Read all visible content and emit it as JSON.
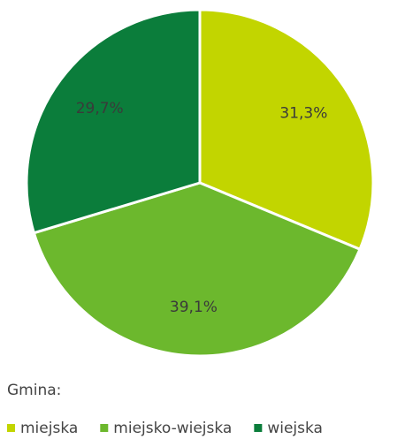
{
  "chart_data": {
    "type": "pie",
    "categories": [
      "miejska",
      "miejsko-wiejska",
      "wiejska"
    ],
    "values": [
      31.3,
      39.1,
      29.7
    ],
    "value_labels": [
      "31,3%",
      "39,1%",
      "29,7%"
    ],
    "colors": [
      "#c2d500",
      "#6cb82d",
      "#0b7d3b"
    ],
    "legend_title": "Gmina:",
    "legend": "bottom"
  }
}
